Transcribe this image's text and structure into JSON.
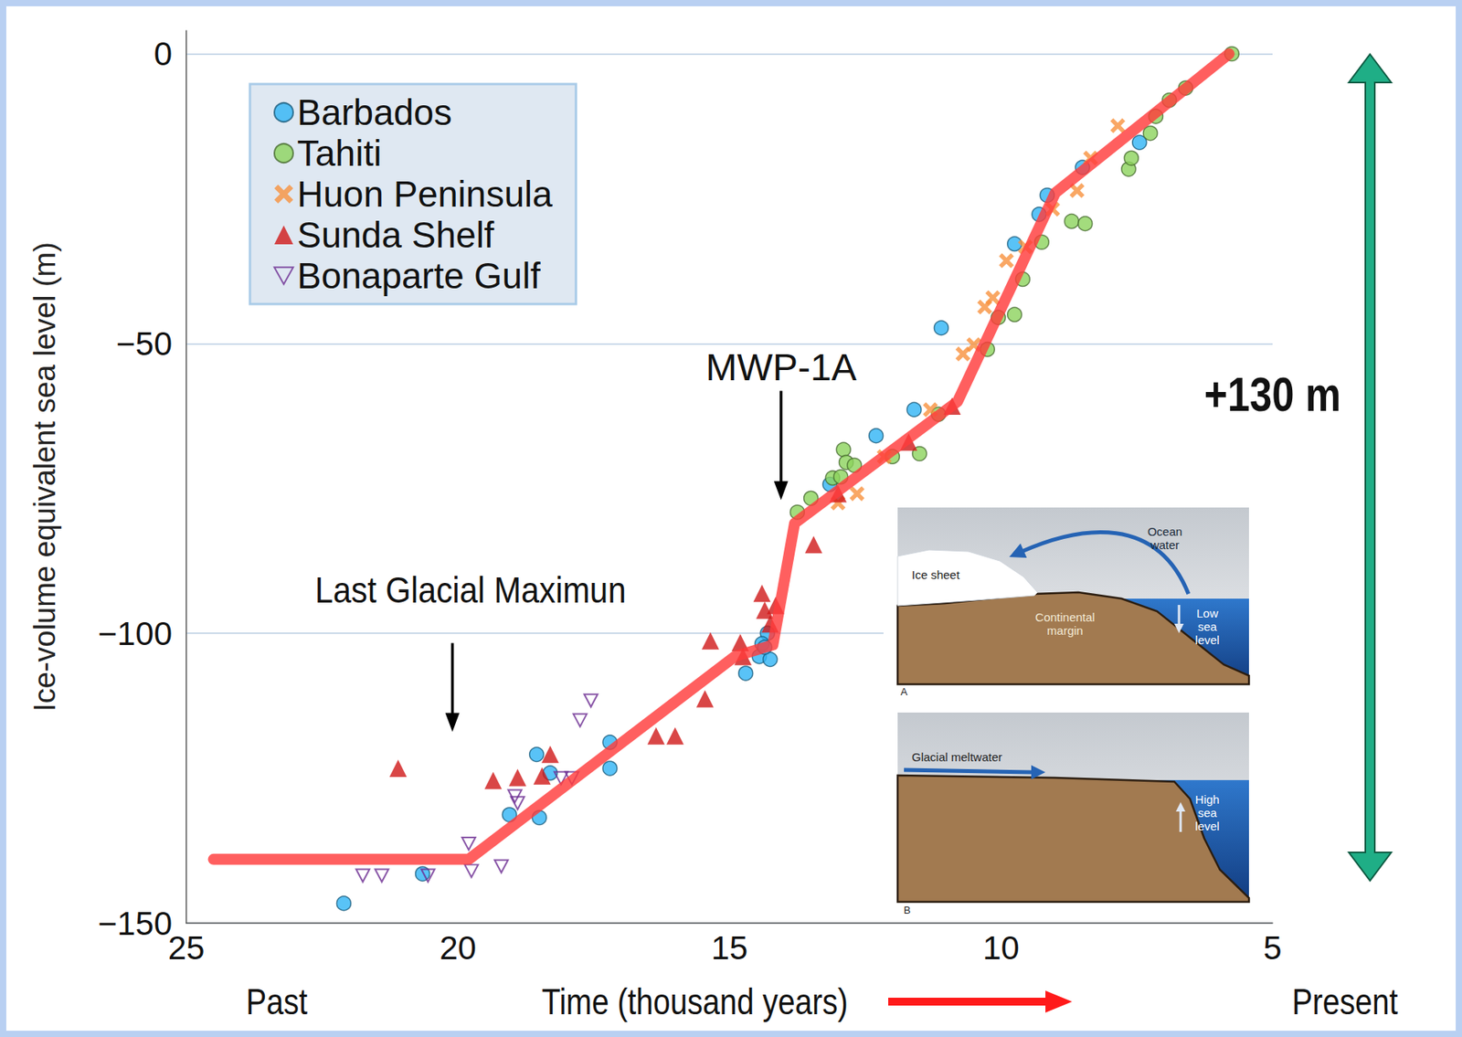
{
  "chart_data": {
    "type": "scatter",
    "y_label": "Ice-volume equivalent sea level (m)",
    "x_label": "Time (thousand years)",
    "axis_end_labels": [
      "Past",
      "Present"
    ],
    "span_label": "+130 m",
    "annotations": [
      {
        "text": "MWP-1A",
        "x": 14.05,
        "y": -77
      },
      {
        "text": "Last Glacial Maximun",
        "x": 20.1,
        "y": -117
      }
    ],
    "inset": {
      "panels": [
        {
          "letter": "A",
          "labels": [
            "Ice sheet",
            "Ocean water",
            "Continental margin",
            "Low sea level"
          ]
        },
        {
          "letter": "B",
          "labels": [
            "Glacial meltwater",
            "High sea level"
          ]
        }
      ]
    },
    "xlim": [
      25,
      5
    ],
    "xticks": [
      25,
      20,
      15,
      10,
      5
    ],
    "ylim": [
      -150,
      4
    ],
    "yticks": [
      {
        "value": -150,
        "label": "−150"
      },
      {
        "value": -100,
        "label": "−100"
      },
      {
        "value": -50,
        "label": "−50"
      },
      0
    ],
    "grid": true,
    "legend": "top-left",
    "series": [
      {
        "name": "Barbados",
        "color": "#2fb4f5",
        "marker": "circle",
        "x": [
          22.1,
          20.65,
          19.05,
          18.5,
          18.55,
          18.3,
          17.2,
          17.2,
          14.7,
          14.45,
          14.3,
          14.4,
          14.25,
          14.35,
          13.15,
          12.3,
          11.6,
          11.1,
          9.75,
          9.3,
          9.15,
          8.5,
          7.45
        ],
        "values": [
          -146.6,
          -141.5,
          -131.3,
          -131.8,
          -120.9,
          -124.1,
          -118.8,
          -123.3,
          -106.9,
          -104,
          -100,
          -101.8,
          -104.5,
          -102.4,
          -74.3,
          -65.9,
          -61.4,
          -47.3,
          -32.8,
          -27.7,
          -24.4,
          -19.6,
          -15.3
        ]
      },
      {
        "name": "Tahiti",
        "color": "#8cd35c",
        "marker": "circle",
        "x": [
          13.75,
          13.5,
          13.1,
          12.9,
          12.85,
          12.7,
          12.95,
          12.0,
          11.5,
          11.15,
          10.25,
          10.05,
          9.75,
          9.6,
          9.25,
          8.7,
          8.45,
          7.65,
          7.6,
          7.25,
          7.15,
          6.9,
          6.6,
          5.75
        ],
        "values": [
          -79.1,
          -76.7,
          -73.2,
          -68.3,
          -70.5,
          -71,
          -73,
          -69.5,
          -69,
          -62.2,
          -51,
          -45.5,
          -45,
          -38.9,
          -32.5,
          -28.9,
          -29.3,
          -19.9,
          -18,
          -13.7,
          -10.8,
          -8,
          -5.9,
          0
        ]
      },
      {
        "name": "Huon Peninsula",
        "color": "#f7913d",
        "marker": "x",
        "x": [
          13.0,
          12.65,
          12.15,
          11.3,
          10.7,
          10.5,
          10.3,
          10.15,
          9.9,
          9.55,
          9.05,
          8.6,
          8.35,
          7.85
        ],
        "values": [
          -77.5,
          -75.9,
          -69.5,
          -61.4,
          -51.8,
          -50.2,
          -43.7,
          -42.1,
          -35.7,
          -33.3,
          -26.8,
          -23.6,
          -18,
          -12.4
        ]
      },
      {
        "name": "Sunda Shelf",
        "color": "#d01818",
        "marker": "triangle",
        "x": [
          21.1,
          19.35,
          18.9,
          18.45,
          18.3,
          16.35,
          16.0,
          15.45,
          15.35,
          14.8,
          14.75,
          14.4,
          14.35,
          14.25,
          14.15,
          13.45,
          13.0,
          11.7,
          10.9
        ],
        "values": [
          -123.3,
          -125.4,
          -124.9,
          -124.6,
          -120.9,
          -117.7,
          -117.7,
          -111.3,
          -101.3,
          -101.6,
          -104,
          -93.1,
          -96,
          -98.4,
          -95.2,
          -84.7,
          -75.9,
          -67,
          -60.8
        ]
      },
      {
        "name": "Bonaparte Gulf",
        "color": "#6b2c91",
        "marker": "open-triangle-down",
        "x": [
          21.75,
          21.4,
          20.55,
          19.8,
          19.75,
          19.2,
          18.95,
          18.9,
          18.1,
          17.9,
          17.75,
          17.55
        ],
        "values": [
          -141.8,
          -141.8,
          -141.8,
          -136.3,
          -141,
          -140.2,
          -128.1,
          -129.3,
          -125,
          -125,
          -115,
          -111.6
        ]
      },
      {
        "type": "line",
        "color": "#ff3c3c",
        "x": [
          24.5,
          19.8,
          14.9,
          14.2,
          13.8,
          10.8,
          10.5,
          9.0,
          5.8
        ],
        "values": [
          -139,
          -139,
          -104,
          -102,
          -81,
          -60,
          -54,
          -24,
          0
        ]
      }
    ]
  }
}
